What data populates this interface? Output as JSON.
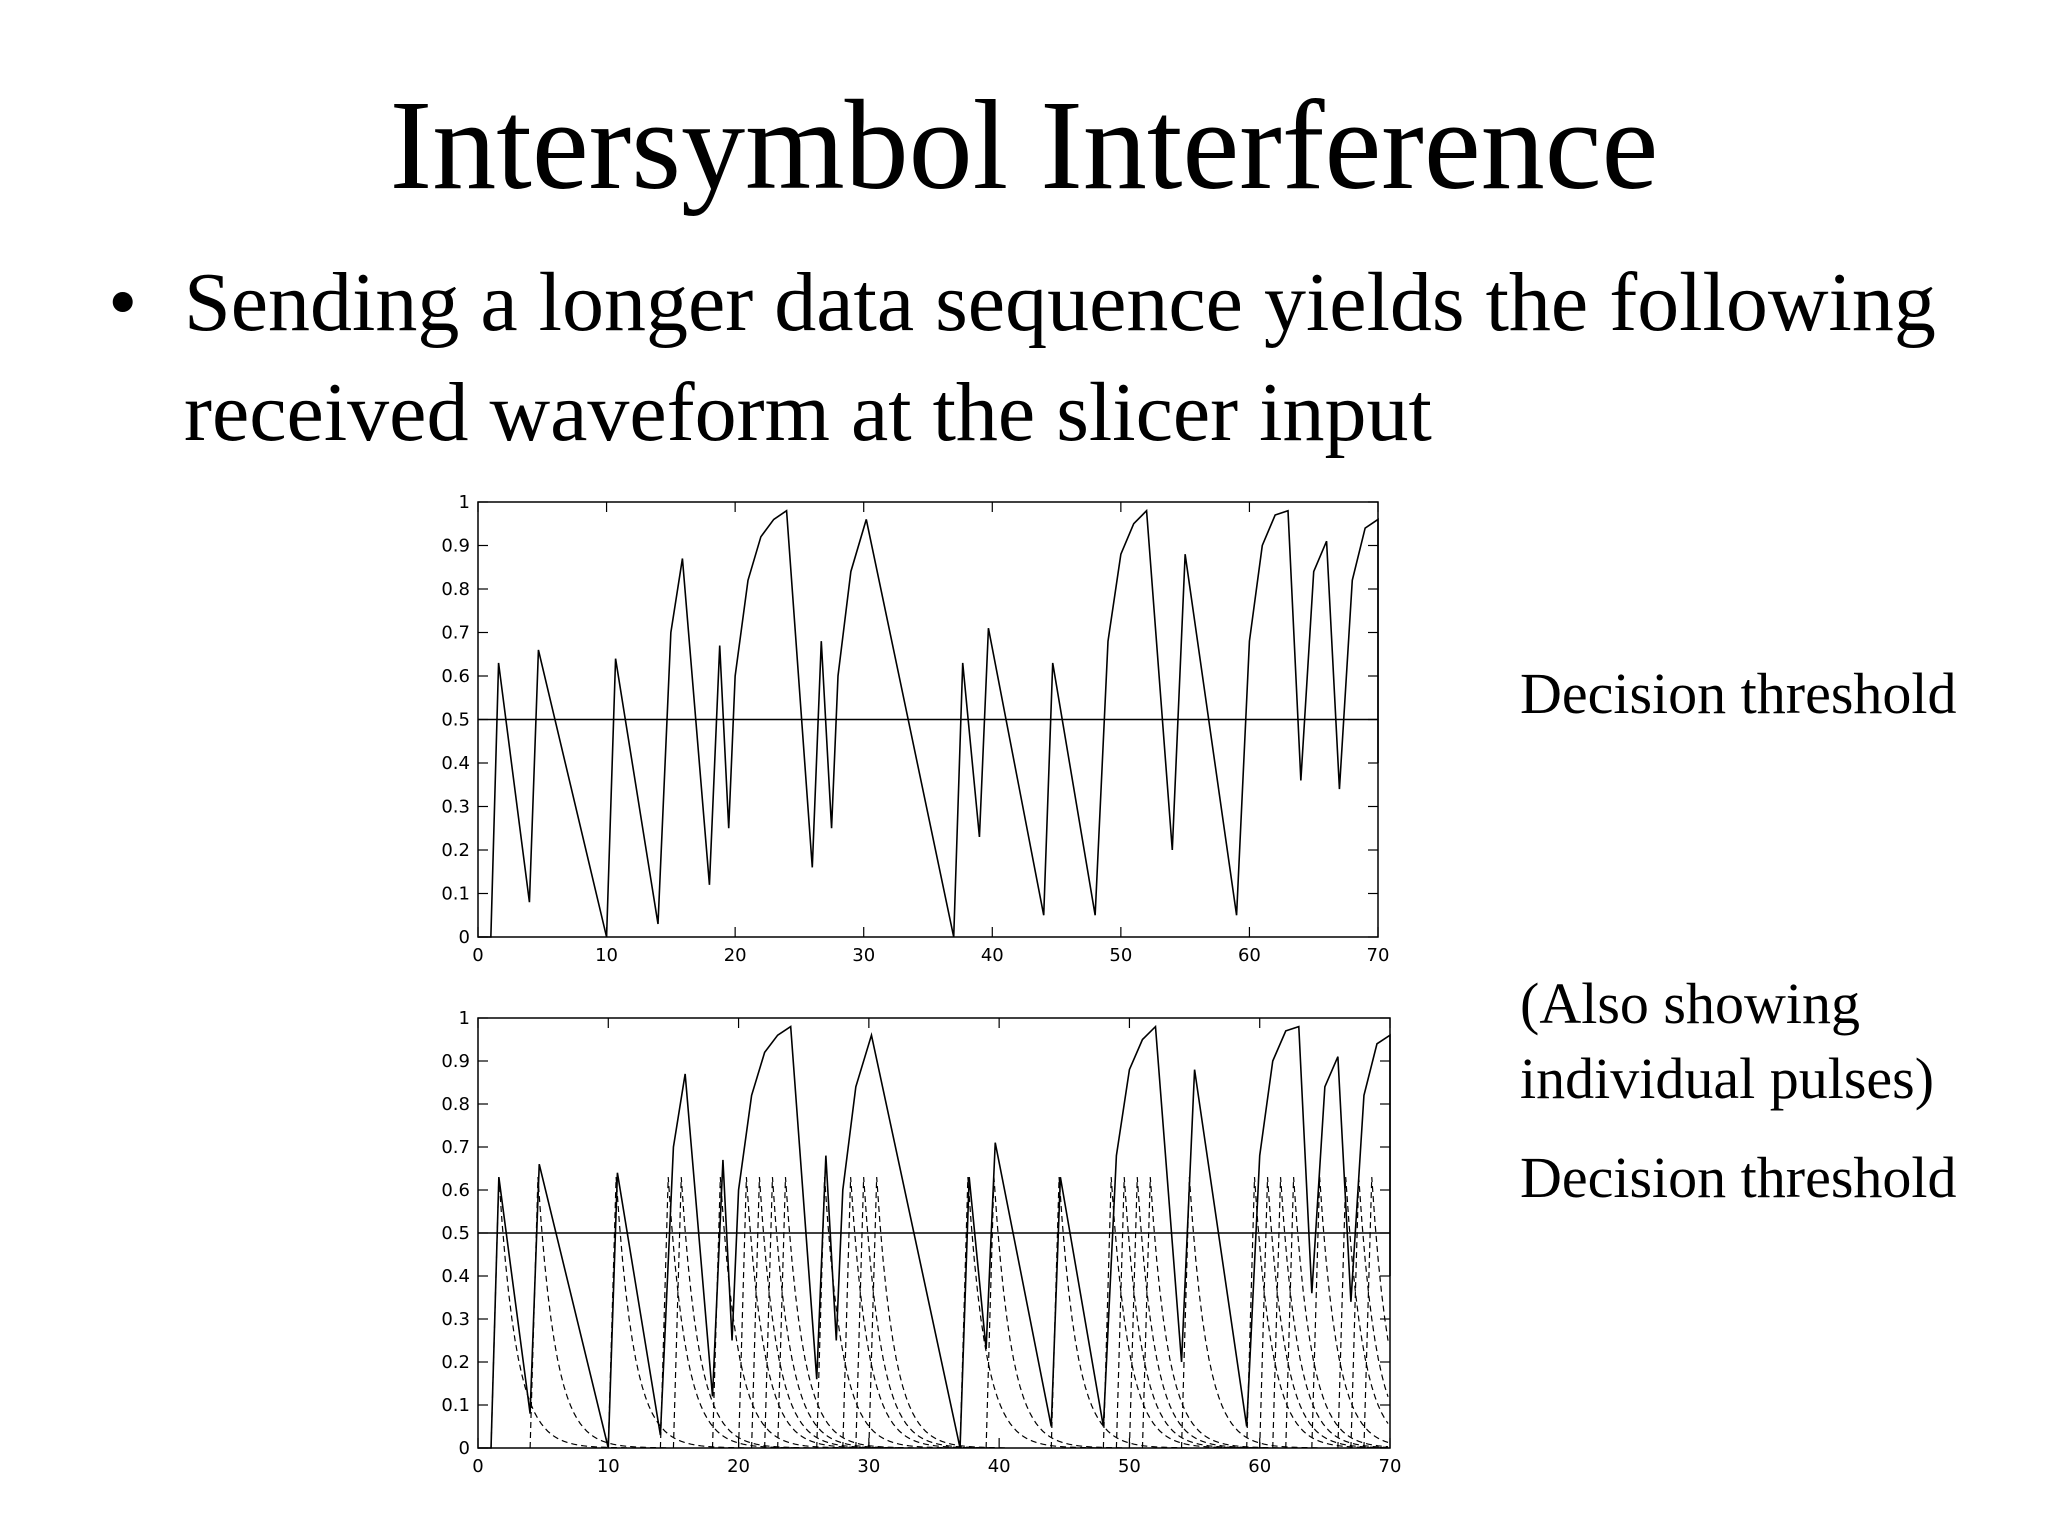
{
  "slide": {
    "title": "Intersymbol Interference",
    "bullet": "Sending a longer data sequence yields the following received waveform at the slicer input"
  },
  "labels": {
    "decision_threshold_1": "Decision threshold",
    "also_showing": "(Also showing individual pulses)",
    "decision_threshold_2": "Decision threshold"
  },
  "chart_data": [
    {
      "type": "line",
      "title": "",
      "xlabel": "",
      "ylabel": "",
      "xlim": [
        0,
        70
      ],
      "ylim": [
        0,
        1
      ],
      "xticks": [
        "0",
        "10",
        "20",
        "30",
        "40",
        "50",
        "60",
        "70"
      ],
      "yticks": [
        "0",
        "0.1",
        "0.2",
        "0.3",
        "0.4",
        "0.5",
        "0.6",
        "0.7",
        "0.8",
        "0.9",
        "1"
      ],
      "grid": false,
      "threshold": 0.5,
      "pulse_starts": [
        1,
        4,
        10,
        14,
        15,
        18,
        20,
        21,
        22,
        23,
        26,
        28,
        29,
        30,
        37,
        39,
        44,
        48,
        49,
        50,
        51,
        54,
        59,
        60,
        61,
        62,
        64,
        66,
        67,
        68
      ],
      "series": [
        {
          "style": "solid",
          "points": [
            [
              0,
              0
            ],
            [
              1,
              0
            ],
            [
              1.6,
              0.63
            ],
            [
              4,
              0.08
            ],
            [
              4.7,
              0.66
            ],
            [
              10,
              0
            ],
            [
              10.7,
              0.64
            ],
            [
              14,
              0.03
            ],
            [
              15,
              0.7
            ],
            [
              15.9,
              0.87
            ],
            [
              18,
              0.12
            ],
            [
              18.8,
              0.67
            ],
            [
              19.5,
              0.25
            ],
            [
              20,
              0.6
            ],
            [
              21,
              0.82
            ],
            [
              22,
              0.92
            ],
            [
              23,
              0.96
            ],
            [
              24,
              0.98
            ],
            [
              26,
              0.16
            ],
            [
              26.7,
              0.68
            ],
            [
              27.5,
              0.25
            ],
            [
              28,
              0.6
            ],
            [
              29,
              0.84
            ],
            [
              30.2,
              0.96
            ],
            [
              37,
              0
            ],
            [
              37.7,
              0.63
            ],
            [
              39,
              0.23
            ],
            [
              39.7,
              0.71
            ],
            [
              44,
              0.05
            ],
            [
              44.7,
              0.63
            ],
            [
              48,
              0.05
            ],
            [
              49,
              0.68
            ],
            [
              50,
              0.88
            ],
            [
              51,
              0.95
            ],
            [
              52,
              0.98
            ],
            [
              54,
              0.2
            ],
            [
              55,
              0.88
            ],
            [
              59,
              0.05
            ],
            [
              60,
              0.68
            ],
            [
              61,
              0.9
            ],
            [
              62,
              0.97
            ],
            [
              63,
              0.98
            ],
            [
              64,
              0.36
            ],
            [
              65,
              0.84
            ],
            [
              66,
              0.91
            ],
            [
              67,
              0.34
            ],
            [
              68,
              0.82
            ],
            [
              69,
              0.94
            ],
            [
              70,
              0.96
            ],
            [
              70,
              0.4
            ]
          ]
        }
      ]
    },
    {
      "type": "line",
      "title": "",
      "xlabel": "",
      "ylabel": "",
      "xlim": [
        0,
        70
      ],
      "ylim": [
        0,
        1
      ],
      "xticks": [
        "0",
        "10",
        "20",
        "30",
        "40",
        "50",
        "60",
        "70"
      ],
      "yticks": [
        "0",
        "0.1",
        "0.2",
        "0.3",
        "0.4",
        "0.5",
        "0.6",
        "0.7",
        "0.8",
        "0.9",
        "1"
      ],
      "grid": false,
      "threshold": 0.5,
      "pulse_starts": [
        1,
        4,
        10,
        14,
        15,
        18,
        20,
        21,
        22,
        23,
        26,
        28,
        29,
        30,
        37,
        39,
        44,
        48,
        49,
        50,
        51,
        54,
        59,
        60,
        61,
        62,
        64,
        66,
        67,
        68
      ],
      "series": [
        {
          "style": "solid",
          "points": [
            [
              0,
              0
            ],
            [
              1,
              0
            ],
            [
              1.6,
              0.63
            ],
            [
              4,
              0.08
            ],
            [
              4.7,
              0.66
            ],
            [
              10,
              0
            ],
            [
              10.7,
              0.64
            ],
            [
              14,
              0.03
            ],
            [
              15,
              0.7
            ],
            [
              15.9,
              0.87
            ],
            [
              18,
              0.12
            ],
            [
              18.8,
              0.67
            ],
            [
              19.5,
              0.25
            ],
            [
              20,
              0.6
            ],
            [
              21,
              0.82
            ],
            [
              22,
              0.92
            ],
            [
              23,
              0.96
            ],
            [
              24,
              0.98
            ],
            [
              26,
              0.16
            ],
            [
              26.7,
              0.68
            ],
            [
              27.5,
              0.25
            ],
            [
              28,
              0.6
            ],
            [
              29,
              0.84
            ],
            [
              30.2,
              0.96
            ],
            [
              37,
              0
            ],
            [
              37.7,
              0.63
            ],
            [
              39,
              0.23
            ],
            [
              39.7,
              0.71
            ],
            [
              44,
              0.05
            ],
            [
              44.7,
              0.63
            ],
            [
              48,
              0.05
            ],
            [
              49,
              0.68
            ],
            [
              50,
              0.88
            ],
            [
              51,
              0.95
            ],
            [
              52,
              0.98
            ],
            [
              54,
              0.2
            ],
            [
              55,
              0.88
            ],
            [
              59,
              0.05
            ],
            [
              60,
              0.68
            ],
            [
              61,
              0.9
            ],
            [
              62,
              0.97
            ],
            [
              63,
              0.98
            ],
            [
              64,
              0.36
            ],
            [
              65,
              0.84
            ],
            [
              66,
              0.91
            ],
            [
              67,
              0.34
            ],
            [
              68,
              0.82
            ],
            [
              69,
              0.94
            ],
            [
              70,
              0.96
            ],
            [
              70,
              0.4
            ]
          ]
        }
      ]
    }
  ]
}
